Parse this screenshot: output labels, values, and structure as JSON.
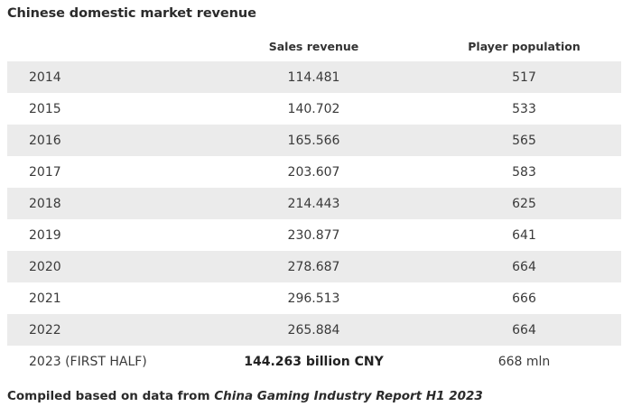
{
  "title": "Chinese domestic market revenue",
  "table": {
    "headers": [
      "",
      "Sales revenue",
      "Player population"
    ],
    "rows": [
      {
        "year": "2014",
        "revenue": "114.481",
        "players": "517"
      },
      {
        "year": "2015",
        "revenue": "140.702",
        "players": "533"
      },
      {
        "year": "2016",
        "revenue": "165.566",
        "players": "565"
      },
      {
        "year": "2017",
        "revenue": "203.607",
        "players": "583"
      },
      {
        "year": "2018",
        "revenue": "214.443",
        "players": "625"
      },
      {
        "year": "2019",
        "revenue": "230.877",
        "players": "641"
      },
      {
        "year": "2020",
        "revenue": "278.687",
        "players": "664"
      },
      {
        "year": "2021",
        "revenue": "296.513",
        "players": "666"
      },
      {
        "year": "2022",
        "revenue": "265.884",
        "players": "664"
      },
      {
        "year": "2023 (FIRST HALF)",
        "revenue": "144.263 billion CNY",
        "players": "668 mln"
      }
    ]
  },
  "footer": {
    "prefix": "Compiled based on data from ",
    "source": "China Gaming Industry Report H1 2023"
  },
  "colors": {
    "row_shade": "#ebebeb",
    "text": "#3a3a3a"
  }
}
